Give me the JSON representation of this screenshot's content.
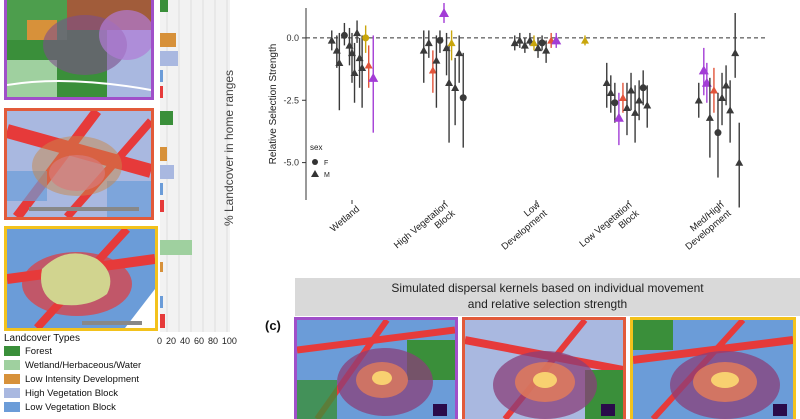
{
  "colors": {
    "forest": "#3a8f3a",
    "wetland": "#9fd09f",
    "low_dev": "#d7913a",
    "high_veg": "#a9b8e0",
    "low_veg": "#6b9cd8",
    "medhigh_dev": "#e63a3a",
    "panel_purple": "#a04fc9",
    "panel_red": "#e25a3a",
    "panel_yellow": "#f3c21c"
  },
  "panel_c_label": "(c)",
  "banner": {
    "line1": "Simulated dispersal kernels based on individual movement",
    "line2": "and relative selection strength"
  },
  "left_axis_label": "% Landcover in home ranges",
  "left_axis_ticks": [
    "0",
    "20",
    "40",
    "60",
    "80",
    "100"
  ],
  "legend": {
    "title": "Landcover Types",
    "items": [
      {
        "label": "Forest",
        "color": "#3a8f3a"
      },
      {
        "label": "Wetland/Herbaceous/Water",
        "color": "#9fd09f"
      },
      {
        "label": "Low Intensity Development",
        "color": "#d7913a"
      },
      {
        "label": "High Vegetation Block",
        "color": "#a9b8e0"
      },
      {
        "label": "Low Vegetation Block",
        "color": "#6b9cd8"
      }
    ]
  },
  "chart_data": {
    "type": "scatter",
    "ylabel": "Relative Selection Strength",
    "ylim": [
      -6.5,
      1.2
    ],
    "yticks": [
      0.0,
      -2.5,
      -5.0
    ],
    "ytick_labels": [
      "0.0",
      "-2.5",
      "-5.0"
    ],
    "categories": [
      "Wetland",
      "High Vegetation Block",
      "Low Development",
      "Low Vegetation Block",
      "Med/High Development"
    ],
    "category_labels": [
      [
        "Wetland"
      ],
      [
        "High Vegetation",
        "Block"
      ],
      [
        "Low",
        "Development"
      ],
      [
        "Low Vegetation",
        "Block"
      ],
      [
        "Med/High",
        "Development"
      ]
    ],
    "legend_title": "sex",
    "legend_entries": [
      "F",
      "M"
    ],
    "points": [
      {
        "c": 0,
        "o": -0.4,
        "y": -0.1,
        "lo": -0.5,
        "hi": 0.3,
        "col": "gray"
      },
      {
        "c": 0,
        "o": -0.3,
        "y": -0.5,
        "lo": -1.2,
        "hi": 0.1,
        "col": "gray"
      },
      {
        "c": 0,
        "o": -0.25,
        "y": -1.0,
        "lo": -2.9,
        "hi": 0.2,
        "col": "gray"
      },
      {
        "c": 0,
        "o": -0.15,
        "y": 0.1,
        "lo": -0.3,
        "hi": 0.6,
        "col": "gray"
      },
      {
        "c": 0,
        "o": -0.05,
        "y": -0.3,
        "lo": -1.1,
        "hi": 0.4,
        "col": "gray"
      },
      {
        "c": 0,
        "o": 0.0,
        "y": -0.6,
        "lo": -1.8,
        "hi": 0.2,
        "col": "gray"
      },
      {
        "c": 0,
        "o": 0.05,
        "y": -1.4,
        "lo": -2.6,
        "hi": -0.2,
        "col": "gray"
      },
      {
        "c": 0,
        "o": 0.1,
        "y": 0.2,
        "lo": -0.2,
        "hi": 0.7,
        "col": "gray"
      },
      {
        "c": 0,
        "o": 0.15,
        "y": -0.8,
        "lo": -2.0,
        "hi": 0.0,
        "col": "gray"
      },
      {
        "c": 0,
        "o": 0.2,
        "y": -1.2,
        "lo": -2.8,
        "hi": 0.1,
        "col": "gray"
      },
      {
        "c": 0,
        "o": 0.27,
        "y": 0.0,
        "lo": -0.6,
        "hi": 0.5,
        "col": "gold"
      },
      {
        "c": 0,
        "o": 0.33,
        "y": -1.1,
        "lo": -2.0,
        "hi": -0.3,
        "col": "red"
      },
      {
        "c": 0,
        "o": 0.42,
        "y": -1.6,
        "lo": -3.8,
        "hi": 0.1,
        "col": "purple"
      },
      {
        "c": 1,
        "o": -0.4,
        "y": -0.5,
        "lo": -1.8,
        "hi": 0.3,
        "col": "gray"
      },
      {
        "c": 1,
        "o": -0.3,
        "y": -0.2,
        "lo": -0.8,
        "hi": 0.3,
        "col": "gray"
      },
      {
        "c": 1,
        "o": -0.22,
        "y": -1.3,
        "lo": -2.2,
        "hi": -0.5,
        "col": "red"
      },
      {
        "c": 1,
        "o": -0.15,
        "y": -0.9,
        "lo": -2.8,
        "hi": 0.1,
        "col": "gray"
      },
      {
        "c": 1,
        "o": -0.08,
        "y": -0.1,
        "lo": -0.6,
        "hi": 0.3,
        "col": "gray"
      },
      {
        "c": 1,
        "o": 0.0,
        "y": 1.0,
        "lo": 0.6,
        "hi": 1.4,
        "col": "purple"
      },
      {
        "c": 1,
        "o": 0.05,
        "y": -0.4,
        "lo": -1.5,
        "hi": 0.2,
        "col": "gray"
      },
      {
        "c": 1,
        "o": 0.1,
        "y": -1.8,
        "lo": -4.2,
        "hi": -0.3,
        "col": "gray"
      },
      {
        "c": 1,
        "o": 0.15,
        "y": -0.2,
        "lo": -0.9,
        "hi": 0.3,
        "col": "gold"
      },
      {
        "c": 1,
        "o": 0.22,
        "y": -2.0,
        "lo": -3.5,
        "hi": -0.8,
        "col": "gray"
      },
      {
        "c": 1,
        "o": 0.3,
        "y": -0.6,
        "lo": -1.8,
        "hi": 0.1,
        "col": "gray"
      },
      {
        "c": 1,
        "o": 0.38,
        "y": -2.4,
        "lo": -4.4,
        "hi": -0.6,
        "col": "gray"
      },
      {
        "c": 2,
        "o": -0.42,
        "y": -0.2,
        "lo": -0.5,
        "hi": 0.1,
        "col": "gray"
      },
      {
        "c": 2,
        "o": -0.32,
        "y": -0.1,
        "lo": -0.4,
        "hi": 0.2,
        "col": "gray"
      },
      {
        "c": 2,
        "o": -0.22,
        "y": -0.3,
        "lo": -0.6,
        "hi": 0.0,
        "col": "gray"
      },
      {
        "c": 2,
        "o": -0.12,
        "y": -0.1,
        "lo": -0.3,
        "hi": 0.2,
        "col": "gray"
      },
      {
        "c": 2,
        "o": -0.04,
        "y": -0.2,
        "lo": -0.5,
        "hi": 0.1,
        "col": "gold"
      },
      {
        "c": 2,
        "o": 0.04,
        "y": -0.4,
        "lo": -0.8,
        "hi": 0.0,
        "col": "gray"
      },
      {
        "c": 2,
        "o": 0.12,
        "y": -0.2,
        "lo": -0.5,
        "hi": 0.1,
        "col": "gray"
      },
      {
        "c": 2,
        "o": 0.2,
        "y": -0.5,
        "lo": -1.0,
        "hi": -0.1,
        "col": "gray"
      },
      {
        "c": 2,
        "o": 0.3,
        "y": -0.1,
        "lo": -0.4,
        "hi": 0.2,
        "col": "red"
      },
      {
        "c": 2,
        "o": 0.4,
        "y": -0.1,
        "lo": -0.4,
        "hi": 0.2,
        "col": "purple"
      },
      {
        "c": 3,
        "o": -0.85,
        "y": -0.1,
        "lo": -0.3,
        "hi": 0.1,
        "col": "gold"
      },
      {
        "c": 3,
        "o": -0.42,
        "y": -1.8,
        "lo": -2.8,
        "hi": -1.0,
        "col": "gray"
      },
      {
        "c": 3,
        "o": -0.34,
        "y": -2.2,
        "lo": -3.0,
        "hi": -1.5,
        "col": "gray"
      },
      {
        "c": 3,
        "o": -0.26,
        "y": -2.6,
        "lo": -3.4,
        "hi": -1.8,
        "col": "gray"
      },
      {
        "c": 3,
        "o": -0.18,
        "y": -3.2,
        "lo": -4.3,
        "hi": -2.2,
        "col": "purple"
      },
      {
        "c": 3,
        "o": -0.1,
        "y": -2.4,
        "lo": -3.0,
        "hi": -1.8,
        "col": "red"
      },
      {
        "c": 3,
        "o": -0.02,
        "y": -2.8,
        "lo": -3.9,
        "hi": -1.8,
        "col": "gray"
      },
      {
        "c": 3,
        "o": 0.06,
        "y": -2.1,
        "lo": -2.9,
        "hi": -1.4,
        "col": "gray"
      },
      {
        "c": 3,
        "o": 0.14,
        "y": -3.0,
        "lo": -4.2,
        "hi": -1.9,
        "col": "gray"
      },
      {
        "c": 3,
        "o": 0.22,
        "y": -2.5,
        "lo": -3.3,
        "hi": -1.7,
        "col": "gray"
      },
      {
        "c": 3,
        "o": 0.3,
        "y": -2.0,
        "lo": -2.7,
        "hi": -1.3,
        "col": "gray"
      },
      {
        "c": 3,
        "o": 0.38,
        "y": -2.7,
        "lo": -3.6,
        "hi": -1.9,
        "col": "gray"
      },
      {
        "c": 4,
        "o": -0.42,
        "y": -2.5,
        "lo": -3.2,
        "hi": -1.8,
        "col": "gray"
      },
      {
        "c": 4,
        "o": -0.32,
        "y": -1.3,
        "lo": -2.3,
        "hi": -0.4,
        "col": "purple"
      },
      {
        "c": 4,
        "o": -0.26,
        "y": -1.8,
        "lo": -2.6,
        "hi": -1.0,
        "col": "purple"
      },
      {
        "c": 4,
        "o": -0.2,
        "y": -3.2,
        "lo": -4.8,
        "hi": -1.6,
        "col": "gray"
      },
      {
        "c": 4,
        "o": -0.12,
        "y": -2.1,
        "lo": -3.0,
        "hi": -1.2,
        "col": "red"
      },
      {
        "c": 4,
        "o": -0.04,
        "y": -3.8,
        "lo": -5.6,
        "hi": -2.2,
        "col": "gray"
      },
      {
        "c": 4,
        "o": 0.04,
        "y": -2.4,
        "lo": -3.5,
        "hi": -1.4,
        "col": "gray"
      },
      {
        "c": 4,
        "o": 0.12,
        "y": -1.9,
        "lo": -2.7,
        "hi": -1.1,
        "col": "gray"
      },
      {
        "c": 4,
        "o": 0.2,
        "y": -2.9,
        "lo": -4.2,
        "hi": -1.7,
        "col": "gray"
      },
      {
        "c": 4,
        "o": 0.3,
        "y": -0.6,
        "lo": -1.6,
        "hi": 1.0,
        "col": "gray"
      },
      {
        "c": 4,
        "o": 0.38,
        "y": -5.0,
        "lo": -6.8,
        "hi": -3.4,
        "col": "gray"
      }
    ]
  }
}
